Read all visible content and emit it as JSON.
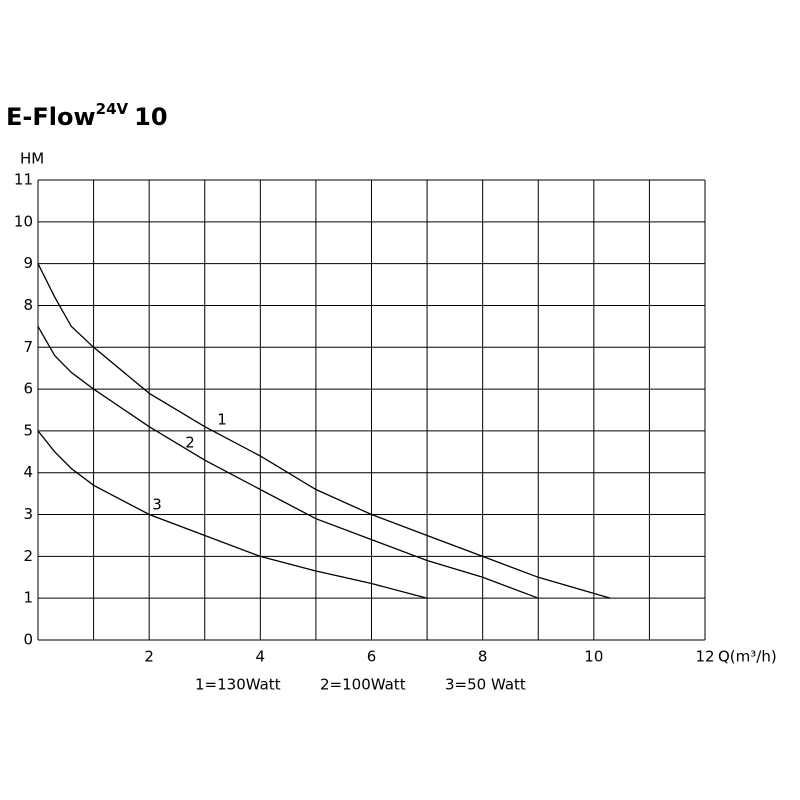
{
  "chart_data": {
    "type": "line",
    "title": "E-Flow",
    "title_superscript": "24V",
    "title_suffix": "10",
    "y_label": "HM",
    "x_label": "Q(m³/h)",
    "xlim": [
      0,
      12
    ],
    "ylim": [
      0,
      11
    ],
    "xticks": [
      2,
      4,
      6,
      8,
      10,
      12
    ],
    "xgrid": [
      0,
      1,
      2,
      3,
      4,
      5,
      6,
      7,
      8,
      9,
      10,
      11,
      12
    ],
    "yticks": [
      0,
      1,
      2,
      3,
      4,
      5,
      6,
      7,
      8,
      9,
      10,
      11
    ],
    "grid": true,
    "series": [
      {
        "name": "1=130Watt",
        "label": "1",
        "color": "#000000",
        "x": [
          0,
          0.3,
          0.6,
          1,
          2,
          3,
          4,
          5,
          6,
          7,
          8,
          9,
          10.3
        ],
        "values": [
          9,
          8.2,
          7.5,
          7,
          5.9,
          5.1,
          4.4,
          3.6,
          3,
          2.5,
          2,
          1.5,
          1
        ]
      },
      {
        "name": "2=100Watt",
        "label": "2",
        "color": "#000000",
        "x": [
          0,
          0.3,
          0.6,
          1,
          2,
          3,
          4,
          5,
          6,
          7,
          8,
          9
        ],
        "values": [
          7.5,
          6.8,
          6.4,
          6,
          5.1,
          4.3,
          3.6,
          2.9,
          2.4,
          1.9,
          1.5,
          1
        ]
      },
      {
        "name": "3=50 Watt",
        "label": "3",
        "color": "#000000",
        "x": [
          0,
          0.3,
          0.6,
          1,
          2,
          3,
          4,
          5,
          6,
          7
        ],
        "values": [
          5,
          4.5,
          4.1,
          3.7,
          3,
          2.5,
          2,
          1.65,
          1.35,
          1
        ]
      }
    ]
  }
}
